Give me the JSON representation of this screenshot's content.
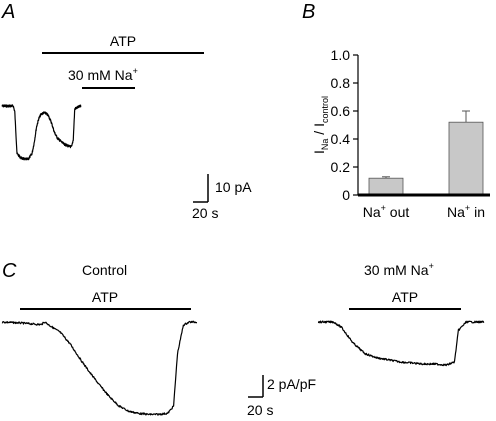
{
  "panels": {
    "a": {
      "letter": "A",
      "bars": {
        "outer": "ATP",
        "inner": "30 mM Na"
      },
      "scalebar": {
        "y_label": "10 pA",
        "x_label": "20 s"
      }
    },
    "b": {
      "letter": "B",
      "ylabel": {
        "a": "I",
        "a_sub": "Na",
        "b": " / I",
        "b_sub": "control"
      }
    },
    "c": {
      "letter": "C",
      "left_title": "Control",
      "right_title": "30 mM Na",
      "bar_label_left": "ATP",
      "bar_label_right": "ATP",
      "scalebar": {
        "y_label": "2 pA/pF",
        "x_label": "20 s"
      }
    }
  },
  "chart_data": [
    {
      "type": "line",
      "panel": "A",
      "title": "",
      "xlabel": "",
      "ylabel": "",
      "x_unit": "s",
      "y_unit": "pA",
      "x": [
        0,
        15,
        17,
        20,
        25,
        30,
        35,
        40,
        43,
        46,
        49,
        52,
        55,
        58,
        62,
        66,
        70,
        74,
        78,
        82,
        86,
        90,
        93,
        95,
        97,
        105
      ],
      "y": [
        0,
        0,
        -2,
        -17,
        -18.5,
        -19,
        -19,
        -17,
        -13,
        -7.5,
        -4.5,
        -3,
        -2.5,
        -2.5,
        -3.5,
        -6,
        -9.5,
        -11.5,
        -12.5,
        -13.5,
        -14,
        -14.5,
        -14.5,
        -12,
        -1,
        0
      ]
    },
    {
      "type": "bar",
      "panel": "B",
      "title": "",
      "xlabel": "",
      "ylabel": "I_Na / I_control",
      "categories": [
        "Na+ out",
        "Na+ in"
      ],
      "category_parts": [
        {
          "base": "Na",
          "sup": "+",
          "rest": " out"
        },
        {
          "base": "Na",
          "sup": "+",
          "rest": " in"
        }
      ],
      "values": [
        0.12,
        0.52
      ],
      "errors": [
        0.01,
        0.08
      ],
      "ylim": [
        0,
        1.0
      ],
      "yticks": [
        "0",
        "0.2",
        "0.4",
        "0.6",
        "0.8",
        "1.0"
      ],
      "grid": false,
      "bar_color": "#c8c8c8"
    },
    {
      "type": "line",
      "panel": "C",
      "title": "",
      "xlabel": "",
      "ylabel": "",
      "x_unit": "s",
      "y_unit": "pA/pF",
      "series": [
        {
          "name": "Control",
          "x": [
            0,
            10,
            20,
            22,
            25,
            30,
            35,
            40,
            45,
            50,
            55,
            60,
            65,
            70,
            75,
            80,
            85,
            88,
            90,
            93,
            96,
            100
          ],
          "y": [
            0,
            -0.1,
            -0.25,
            0,
            -0.4,
            -1.0,
            -2.1,
            -3.5,
            -4.8,
            -6.0,
            -7.1,
            -8.0,
            -8.5,
            -8.7,
            -8.8,
            -8.8,
            -8.7,
            -8.0,
            -3.0,
            -0.3,
            0,
            0
          ]
        },
        {
          "name": "30 mM Na+",
          "x": [
            0,
            8,
            12,
            18,
            24,
            30,
            36,
            42,
            48,
            54,
            60,
            66,
            70,
            72,
            76,
            85
          ],
          "y": [
            0,
            0,
            -0.5,
            -2.0,
            -3.0,
            -3.4,
            -3.6,
            -3.8,
            -3.9,
            -4.0,
            -4.0,
            -4.1,
            -3.8,
            -0.8,
            0,
            0
          ]
        }
      ]
    }
  ]
}
